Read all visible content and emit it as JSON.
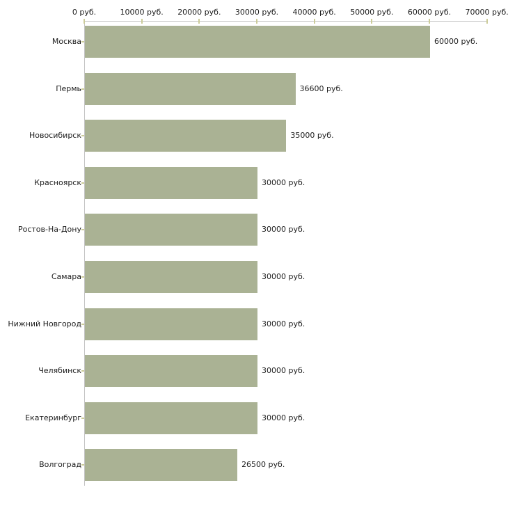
{
  "chart_data": {
    "type": "bar",
    "orientation": "horizontal",
    "title": "",
    "xlabel": "",
    "ylabel": "",
    "legend": "none",
    "grid": "off",
    "categories": [
      "Москва",
      "Пермь",
      "Новосибирск",
      "Красноярск",
      "Ростов-На-Дону",
      "Самара",
      "Нижний Новгород",
      "Челябинск",
      "Екатеринбург",
      "Волгоград"
    ],
    "values": [
      60000,
      36600,
      35000,
      30000,
      30000,
      30000,
      30000,
      30000,
      30000,
      26500
    ],
    "value_labels": [
      "60000 руб.",
      "36600 руб.",
      "35000 руб.",
      "30000 руб.",
      "30000 руб.",
      "30000 руб.",
      "30000 руб.",
      "30000 руб.",
      "30000 руб.",
      "26500 руб."
    ],
    "unit": "руб.",
    "x_axis": {
      "position": "top",
      "xlim": [
        0,
        70000
      ],
      "tick_values": [
        0,
        10000,
        20000,
        30000,
        40000,
        50000,
        60000,
        70000
      ],
      "tick_labels": [
        "0 руб.",
        "10000 руб.",
        "20000 руб.",
        "30000 руб.",
        "40000 руб.",
        "50000 руб.",
        "60000 руб.",
        "70000 руб."
      ]
    },
    "colors": {
      "bar": "#aab294",
      "axis_line": "#c3c3c3",
      "tick_mark": "#cccc99",
      "text": "#1c1c1c",
      "background": "#ffffff"
    }
  }
}
